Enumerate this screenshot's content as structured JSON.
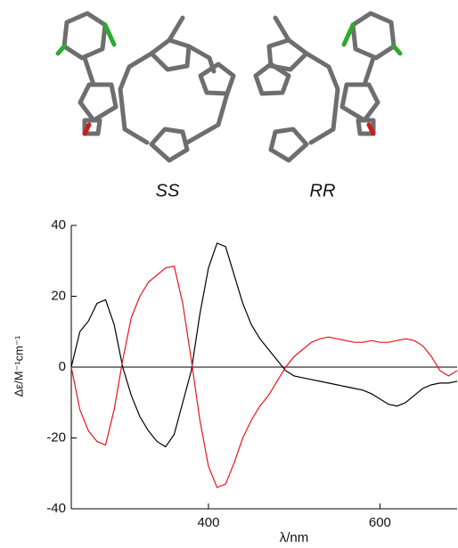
{
  "labels": [
    "SS",
    "RR"
  ],
  "chart_data": {
    "type": "line",
    "xlabel": "λ/nm",
    "ylabel": "Δε/M⁻¹cm⁻¹",
    "x": [
      240,
      250,
      260,
      270,
      280,
      290,
      300,
      310,
      320,
      330,
      340,
      350,
      360,
      370,
      380,
      390,
      400,
      410,
      420,
      430,
      440,
      450,
      460,
      470,
      480,
      490,
      500,
      510,
      520,
      530,
      540,
      550,
      560,
      570,
      580,
      590,
      600,
      610,
      620,
      630,
      640,
      650,
      660,
      670,
      680,
      690
    ],
    "series": [
      {
        "color": "#000000",
        "values": [
          0,
          10,
          13,
          18,
          19,
          12,
          0,
          -8,
          -14,
          -18,
          -21,
          -22.5,
          -19,
          -10,
          -1,
          15,
          28,
          35,
          34,
          26,
          18,
          12,
          8,
          5,
          2,
          -1,
          -2.5,
          -3,
          -3.5,
          -4,
          -4.5,
          -5,
          -5.5,
          -6,
          -6.5,
          -7.5,
          -9,
          -10.5,
          -11,
          -10,
          -8,
          -6,
          -5,
          -4.5,
          -4.5,
          -4
        ]
      },
      {
        "color": "#e8141c",
        "values": [
          0,
          -12,
          -18,
          -21,
          -22,
          -12,
          2,
          14,
          20,
          24,
          26,
          28,
          28.5,
          18,
          2,
          -15,
          -28,
          -34,
          -33,
          -27,
          -20,
          -15,
          -11,
          -8,
          -4,
          0,
          3,
          5,
          7,
          8,
          8.5,
          8,
          7.5,
          7,
          7,
          7.5,
          7,
          7,
          7.5,
          8,
          7.5,
          6,
          3,
          -1,
          -2.5,
          -1
        ]
      }
    ],
    "xlim": [
      240,
      690
    ],
    "xticks": [
      400,
      600
    ],
    "ylim": [
      -40,
      40
    ],
    "yticks": [
      -40,
      -20,
      0,
      20,
      40
    ]
  }
}
